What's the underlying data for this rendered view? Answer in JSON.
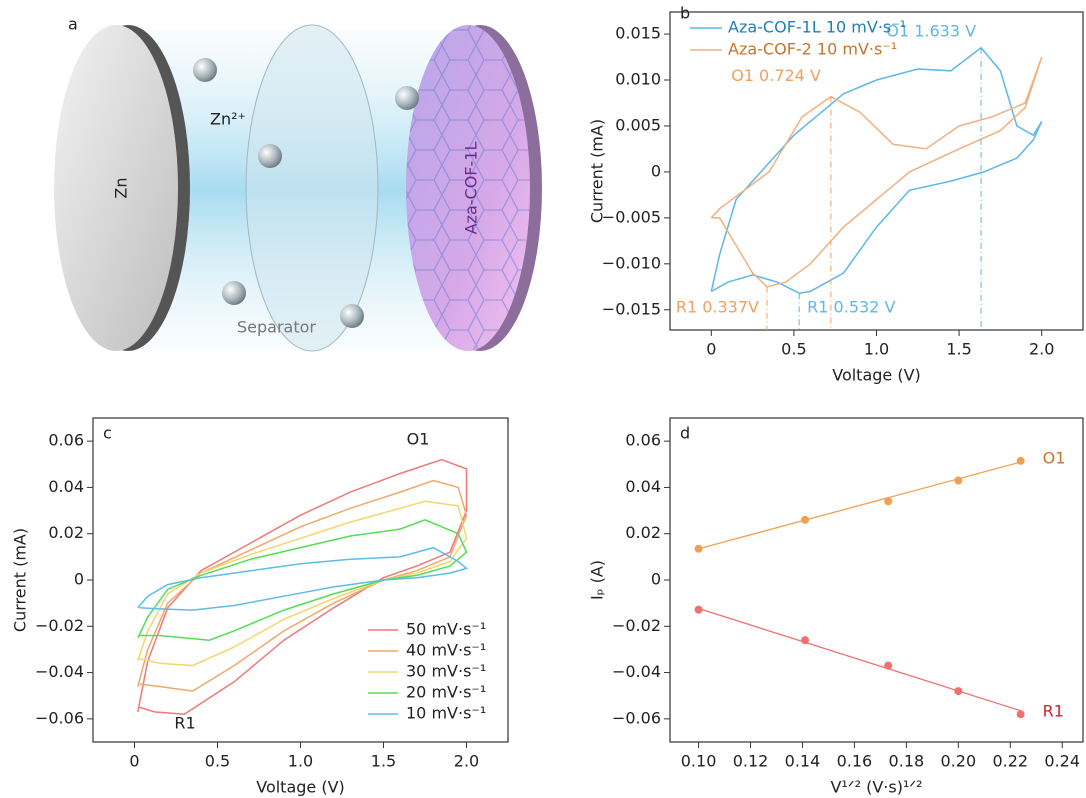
{
  "panel_a": {
    "letter": "a",
    "labels": {
      "zn": "Zn",
      "ion": "Zn²⁺",
      "separator": "Separator",
      "cathode": "Aza-COF-1L"
    }
  },
  "chart_data": [
    {
      "type": "line",
      "panel": "b",
      "x_label": "Voltage (V)",
      "y_label": "Current (mA)",
      "xlim": [
        -0.25,
        2.25
      ],
      "ylim": [
        -0.0172,
        0.0174
      ],
      "xticks": [
        0,
        0.5,
        {
          "value": 1,
          "label": "1.0"
        },
        1.5,
        {
          "value": 2,
          "label": "2.0"
        }
      ],
      "yticks": [
        {
          "value": -0.015,
          "label": "−0.015"
        },
        {
          "value": -0.01,
          "label": "−0.010"
        },
        {
          "value": -0.005,
          "label": "−0.005"
        },
        0,
        0.005,
        {
          "value": 0.01,
          "label": "0.010"
        },
        0.015
      ],
      "series": [
        {
          "name": "Aza-COF-1L 10 mV·s⁻¹",
          "color": "#5cb8e6",
          "label_color": "#1f7fb8",
          "x": [
            0.0,
            0.05,
            0.15,
            0.3,
            0.5,
            0.8,
            1.0,
            1.25,
            1.45,
            1.633,
            1.75,
            1.85,
            1.95,
            2.0,
            1.95,
            1.85,
            1.65,
            1.45,
            1.2,
            1.0,
            0.8,
            0.6,
            0.532,
            0.4,
            0.25,
            0.1,
            0.0
          ],
          "values": [
            -0.013,
            -0.009,
            -0.003,
            0.0,
            0.004,
            0.0085,
            0.01,
            0.0112,
            0.011,
            0.0135,
            0.011,
            0.005,
            0.004,
            0.0055,
            0.0035,
            0.0015,
            0.0,
            -0.001,
            -0.002,
            -0.006,
            -0.011,
            -0.013,
            -0.0132,
            -0.012,
            -0.0112,
            -0.012,
            -0.013
          ]
        },
        {
          "name": "Aza-COF-2  10 mV·s⁻¹",
          "color": "#f0b080",
          "label_color": "#c8742a",
          "x": [
            0.0,
            0.05,
            0.15,
            0.25,
            0.337,
            0.45,
            0.6,
            0.8,
            1.0,
            1.2,
            1.5,
            1.75,
            1.9,
            2.0,
            1.9,
            1.7,
            1.5,
            1.3,
            1.1,
            0.9,
            0.724,
            0.55,
            0.35,
            0.2,
            0.05,
            0.0
          ],
          "values": [
            -0.005,
            -0.005,
            -0.008,
            -0.011,
            -0.0125,
            -0.012,
            -0.01,
            -0.006,
            -0.003,
            0.0,
            0.0025,
            0.0045,
            0.007,
            0.0125,
            0.0075,
            0.006,
            0.005,
            0.0025,
            0.003,
            0.0065,
            0.0082,
            0.006,
            0.0,
            -0.002,
            -0.004,
            -0.005
          ]
        }
      ],
      "markers": [
        {
          "x": 1.633,
          "y": 0.0135,
          "label": "O1 1.633 V",
          "color": "#5cb8e6"
        },
        {
          "x": 0.724,
          "y": 0.0082,
          "label": "O1 0.724 V",
          "color": "#f0a060"
        },
        {
          "x": 0.337,
          "y": -0.0125,
          "label": "R1 0.337V",
          "color": "#f0a060"
        },
        {
          "x": 0.532,
          "y": -0.0132,
          "label": "R1 0.532 V",
          "color": "#5cb8e6"
        }
      ]
    },
    {
      "type": "line",
      "panel": "c",
      "x_label": "Voltage (V)",
      "y_label": "Current (mA)",
      "xlim": [
        -0.25,
        2.25
      ],
      "ylim": [
        -0.07,
        0.07
      ],
      "xticks": [
        0,
        0.5,
        {
          "value": 1,
          "label": "1.0"
        },
        1.5,
        {
          "value": 2,
          "label": "2.0"
        }
      ],
      "yticks": [
        {
          "value": -0.06,
          "label": "−0.06"
        },
        {
          "value": -0.04,
          "label": "−0.04"
        },
        {
          "value": -0.02,
          "label": "−0.02"
        },
        0,
        0.02,
        0.04,
        0.06
      ],
      "annotations": [
        "O1",
        "R1"
      ],
      "series": [
        {
          "name": "50 mV·s⁻¹",
          "color": "#f07878",
          "x": [
            0.02,
            0.08,
            0.2,
            0.4,
            0.7,
            1.0,
            1.3,
            1.6,
            1.85,
            2.0,
            2.0,
            1.9,
            1.7,
            1.5,
            1.2,
            0.9,
            0.6,
            0.3,
            0.12,
            0.03
          ],
          "values": [
            -0.057,
            -0.035,
            -0.012,
            0.004,
            0.016,
            0.028,
            0.038,
            0.046,
            0.052,
            0.048,
            0.03,
            0.012,
            0.006,
            0.001,
            -0.012,
            -0.026,
            -0.044,
            -0.058,
            -0.057,
            -0.055
          ]
        },
        {
          "name": "40 mV·s⁻¹",
          "color": "#f0a86a",
          "x": [
            0.02,
            0.08,
            0.2,
            0.4,
            0.7,
            1.0,
            1.3,
            1.6,
            1.8,
            1.95,
            2.0,
            1.9,
            1.7,
            1.5,
            1.2,
            0.9,
            0.6,
            0.35,
            0.15,
            0.03
          ],
          "values": [
            -0.046,
            -0.03,
            -0.01,
            0.003,
            0.013,
            0.023,
            0.031,
            0.038,
            0.043,
            0.04,
            0.028,
            0.01,
            0.004,
            0.0,
            -0.01,
            -0.022,
            -0.037,
            -0.048,
            -0.046,
            -0.045
          ]
        },
        {
          "name": "30 mV·s⁻¹",
          "color": "#f5d56e",
          "x": [
            0.02,
            0.08,
            0.2,
            0.4,
            0.7,
            1.0,
            1.3,
            1.6,
            1.75,
            1.95,
            2.0,
            1.9,
            1.7,
            1.5,
            1.2,
            0.9,
            0.6,
            0.35,
            0.15,
            0.03
          ],
          "values": [
            -0.035,
            -0.022,
            -0.006,
            0.003,
            0.011,
            0.018,
            0.025,
            0.031,
            0.034,
            0.032,
            0.018,
            0.008,
            0.003,
            0.0,
            -0.008,
            -0.017,
            -0.029,
            -0.037,
            -0.036,
            -0.034
          ]
        },
        {
          "name": "20 mV·s⁻¹",
          "color": "#55dd55",
          "x": [
            0.02,
            0.08,
            0.2,
            0.4,
            0.7,
            1.0,
            1.3,
            1.6,
            1.75,
            1.95,
            2.0,
            1.9,
            1.7,
            1.5,
            1.2,
            0.9,
            0.6,
            0.45,
            0.15,
            0.03
          ],
          "values": [
            -0.025,
            -0.016,
            -0.004,
            0.002,
            0.009,
            0.014,
            0.019,
            0.022,
            0.026,
            0.02,
            0.012,
            0.006,
            0.002,
            0.0,
            -0.006,
            -0.013,
            -0.022,
            -0.026,
            -0.024,
            -0.024
          ]
        },
        {
          "name": "10 mV·s⁻¹",
          "color": "#5bbde8",
          "x": [
            0.02,
            0.08,
            0.2,
            0.4,
            0.7,
            1.0,
            1.3,
            1.6,
            1.8,
            1.95,
            2.0,
            1.9,
            1.7,
            1.5,
            1.2,
            0.9,
            0.6,
            0.35,
            0.15,
            0.03
          ],
          "values": [
            -0.012,
            -0.007,
            -0.002,
            0.001,
            0.004,
            0.007,
            0.009,
            0.01,
            0.014,
            0.008,
            0.005,
            0.003,
            0.001,
            0.0,
            -0.003,
            -0.007,
            -0.011,
            -0.013,
            -0.0125,
            -0.012
          ]
        }
      ]
    },
    {
      "type": "scatter",
      "panel": "d",
      "x_label": "V¹ᐟ² (V·s)¹ᐟ²",
      "y_label": "Iₚ (A)",
      "xlim": [
        0.089,
        0.248
      ],
      "ylim": [
        -0.07,
        0.07
      ],
      "xticks": [
        {
          "value": 0.1,
          "label": "0.10"
        },
        0.12,
        0.14,
        0.16,
        0.18,
        {
          "value": 0.2,
          "label": "0.20"
        },
        0.22,
        0.24
      ],
      "yticks": [
        {
          "value": -0.06,
          "label": "−0.06"
        },
        {
          "value": -0.04,
          "label": "−0.04"
        },
        {
          "value": -0.02,
          "label": "−0.02"
        },
        0,
        0.02,
        0.04,
        0.06
      ],
      "series": [
        {
          "name": "O1",
          "color": "#f0a050",
          "label_color": "#c8742a",
          "x": [
            0.1,
            0.141,
            0.173,
            0.2,
            0.224
          ],
          "values": [
            0.0135,
            0.026,
            0.034,
            0.043,
            0.0515
          ],
          "fit": {
            "x": [
              0.1,
              0.224
            ],
            "values": [
              0.0135,
              0.051
            ]
          }
        },
        {
          "name": "R1",
          "color": "#f07070",
          "label_color": "#c0282a",
          "x": [
            0.1,
            0.141,
            0.173,
            0.2,
            0.224
          ],
          "values": [
            -0.0128,
            -0.026,
            -0.037,
            -0.048,
            -0.058
          ],
          "fit": {
            "x": [
              0.1,
              0.224
            ],
            "values": [
              -0.0123,
              -0.0565
            ]
          }
        }
      ]
    }
  ]
}
